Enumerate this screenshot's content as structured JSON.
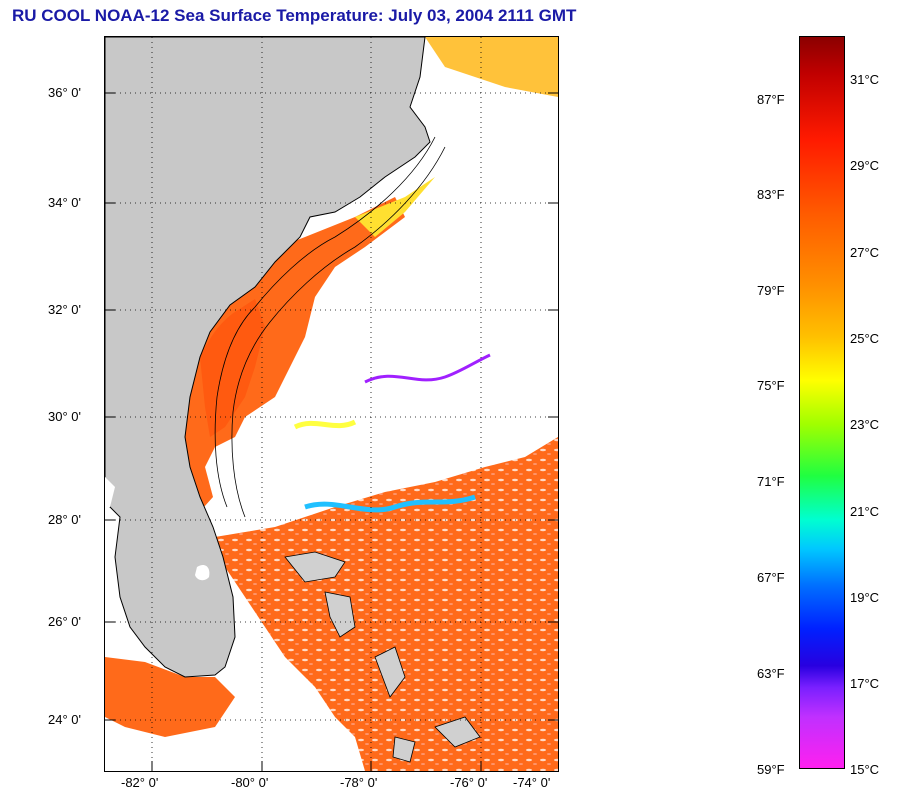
{
  "title": "RU COOL  NOAA-12  Sea Surface Temperature:  July 03, 2004 2111 GMT",
  "map": {
    "lat_labels": [
      "36° 0'",
      "34° 0'",
      "32° 0'",
      "30° 0'",
      "28° 0'",
      "26° 0'",
      "24° 0'"
    ],
    "lon_labels": [
      "-82° 0'",
      "-80° 0'",
      "-78° 0'",
      "-76° 0'",
      "-74° 0'"
    ],
    "colors": {
      "land": "#c8c8c8",
      "cloud": "#ffffff",
      "warm_water": "#ff6a1a",
      "hot_water": "#ff3010"
    }
  },
  "colorbar": {
    "fahrenheit_labels": [
      "87°F",
      "83°F",
      "79°F",
      "75°F",
      "71°F",
      "67°F",
      "63°F",
      "59°F"
    ],
    "celsius_labels": [
      "31°C",
      "29°C",
      "27°C",
      "25°C",
      "23°C",
      "21°C",
      "19°C",
      "17°C",
      "15°C"
    ]
  }
}
